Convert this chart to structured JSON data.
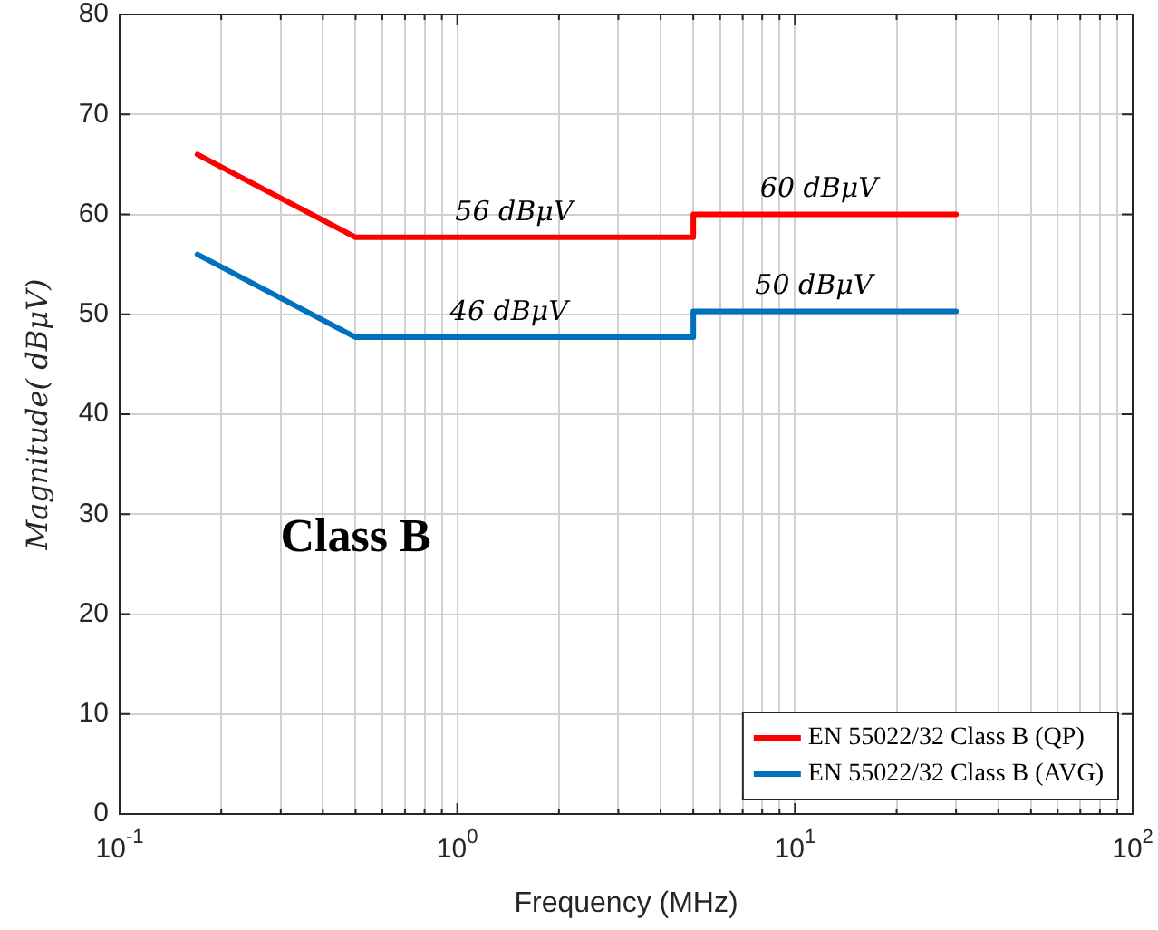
{
  "chart_data": {
    "type": "line",
    "xlabel": "Frequency (MHz)",
    "ylabel": "Magnitude( dBμV)",
    "log": "x",
    "xlim": [
      0.1,
      100
    ],
    "ylim": [
      0,
      80
    ],
    "xticks": [
      {
        "value": 0.1,
        "label": "10$^{-1}$"
      },
      {
        "value": 0.2,
        "label": null
      },
      {
        "value": 0.3,
        "label": null
      },
      {
        "value": 0.4,
        "label": null
      },
      {
        "value": 0.5,
        "label": null
      },
      {
        "value": 0.6,
        "label": null
      },
      {
        "value": 0.7,
        "label": null
      },
      {
        "value": 0.8,
        "label": null
      },
      {
        "value": 0.9,
        "label": null
      },
      {
        "value": 1,
        "label": "10$^{0}$"
      },
      {
        "value": 2,
        "label": null
      },
      {
        "value": 3,
        "label": null
      },
      {
        "value": 4,
        "label": null
      },
      {
        "value": 5,
        "label": null
      },
      {
        "value": 6,
        "label": null
      },
      {
        "value": 7,
        "label": null
      },
      {
        "value": 8,
        "label": null
      },
      {
        "value": 9,
        "label": null
      },
      {
        "value": 10,
        "label": "10$^{1}$"
      },
      {
        "value": 20,
        "label": null
      },
      {
        "value": 30,
        "label": null
      },
      {
        "value": 40,
        "label": null
      },
      {
        "value": 50,
        "label": null
      },
      {
        "value": 60,
        "label": null
      },
      {
        "value": 70,
        "label": null
      },
      {
        "value": 80,
        "label": null
      },
      {
        "value": 90,
        "label": null
      },
      {
        "value": 100,
        "label": "10$^{2}$"
      }
    ],
    "yticks": [
      0,
      10,
      20,
      30,
      40,
      50,
      60,
      70,
      80
    ],
    "grid": true,
    "legend": "bottom right",
    "marker": "none",
    "line_style": "solid",
    "series": [
      {
        "name": "EN 55022/32 Class B (QP)",
        "color": "#ff0000",
        "x": [
          0.17,
          0.5,
          5,
          5,
          30
        ],
        "values": [
          66,
          57.7,
          57.7,
          60,
          60
        ]
      },
      {
        "name": "EN 55022/32 Class B (AVG)",
        "color": "#0072bd",
        "x": [
          0.17,
          0.5,
          5,
          5,
          30
        ],
        "values": [
          56,
          47.7,
          47.7,
          50.3,
          50.3
        ]
      }
    ],
    "annotations": [
      {
        "text": "56 dBμV",
        "x": 1.5,
        "y": 57.7
      },
      {
        "text": "60 dBμV",
        "x": 12,
        "y": 60
      },
      {
        "text": "46 dBμV",
        "x": 1.45,
        "y": 47.7
      },
      {
        "text": "50 dBμV",
        "x": 11.6,
        "y": 50.3
      },
      "Class B"
    ]
  }
}
